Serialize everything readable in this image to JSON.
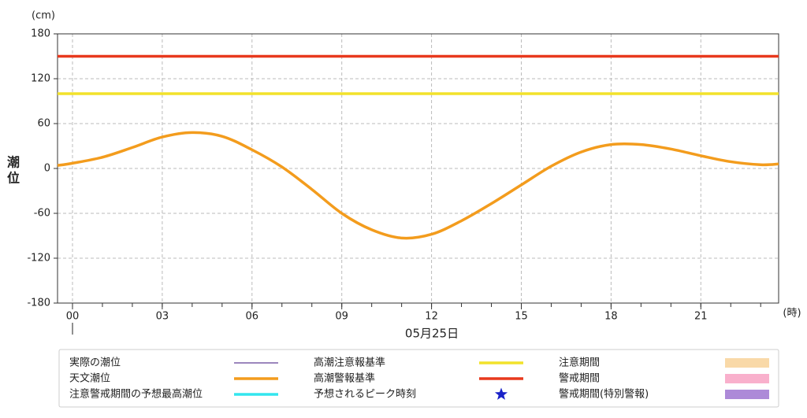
{
  "chart_data": {
    "type": "line",
    "y_unit": "(cm)",
    "x_unit": "(時)",
    "y_label": "潮位",
    "date": "05月25日",
    "x": [
      -0.5,
      0,
      1,
      2,
      3,
      4,
      5,
      6,
      7,
      8,
      9,
      10,
      11,
      12,
      13,
      14,
      15,
      16,
      17,
      18,
      19,
      20,
      21,
      22,
      23,
      23.6
    ],
    "xlim": [
      -0.5,
      23.6
    ],
    "xticks": [
      {
        "value": 0,
        "label": "00"
      },
      {
        "value": 3,
        "label": "03"
      },
      {
        "value": 6,
        "label": "06"
      },
      {
        "value": 9,
        "label": "09"
      },
      {
        "value": 12,
        "label": "12"
      },
      {
        "value": 15,
        "label": "15"
      },
      {
        "value": 18,
        "label": "18"
      },
      {
        "value": 21,
        "label": "21"
      }
    ],
    "ylim": [
      -180,
      180
    ],
    "yticks": [
      180,
      120,
      60,
      0,
      -60,
      -120,
      -180
    ],
    "grid": true,
    "series": [
      {
        "name": "実際の潮位",
        "color": "#7b5ea7",
        "marker": "line"
      },
      {
        "name": "天文潮位",
        "color": "#f39c1d",
        "marker": "line",
        "values": [
          4,
          7,
          15,
          28,
          42,
          48,
          43,
          25,
          2,
          -28,
          -60,
          -82,
          -93,
          -88,
          -70,
          -47,
          -22,
          3,
          22,
          32,
          32,
          26,
          17,
          9,
          5,
          6
        ]
      },
      {
        "name": "注意警戒期間の予想最高潮位",
        "color": "#33e6ee",
        "marker": "line"
      },
      {
        "name": "高潮注意報基準",
        "color": "#f2e22a",
        "marker": "line",
        "value": 100
      },
      {
        "name": "高潮警報基準",
        "color": "#e8391d",
        "marker": "line",
        "value": 150
      },
      {
        "name": "予想されるピーク時刻",
        "color": "#1a22c8",
        "marker": "star"
      },
      {
        "name": "注意期間",
        "color": "#f9d9a8",
        "marker": "band"
      },
      {
        "name": "警戒期間",
        "color": "#f9b0cc",
        "marker": "band"
      },
      {
        "name": "警戒期間(特別警報)",
        "color": "#ad8ad8",
        "marker": "band"
      }
    ]
  }
}
